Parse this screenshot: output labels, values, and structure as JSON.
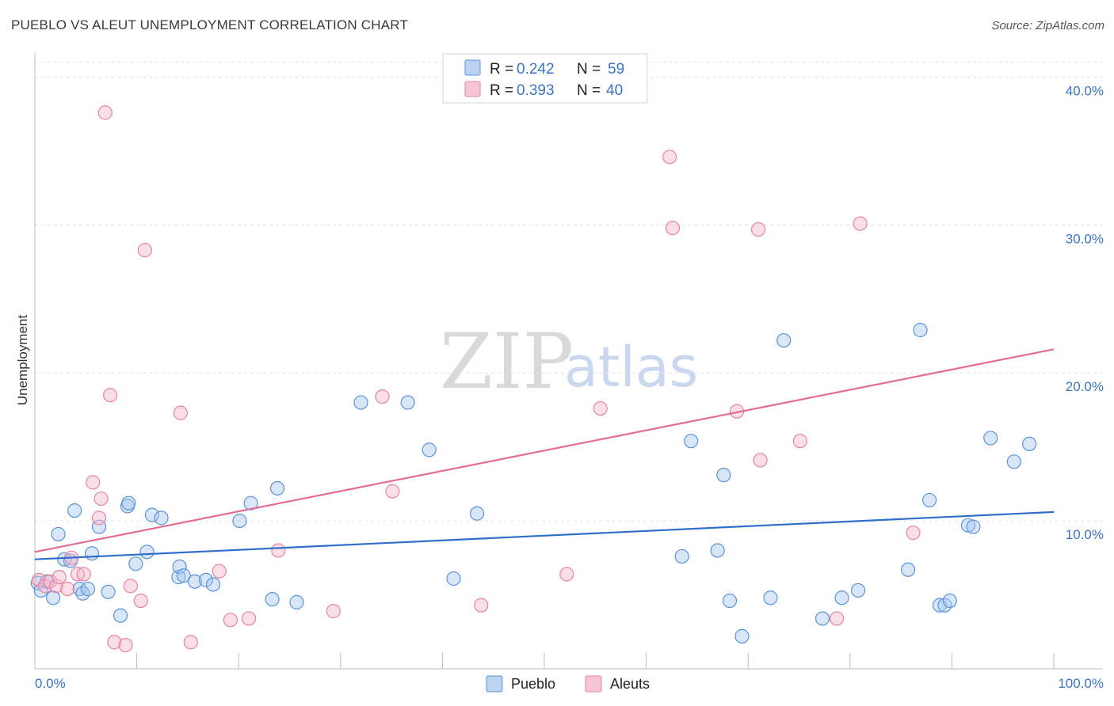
{
  "header": {
    "title": "PUEBLO VS ALEUT UNEMPLOYMENT CORRELATION CHART",
    "source": "Source: ZipAtlas.com"
  },
  "watermark": {
    "part1": "ZIP",
    "part2": "atlas"
  },
  "legend": {
    "rows": [
      {
        "r_label": "R = ",
        "r_value": "0.242",
        "n_label": "N = ",
        "n_value": "59",
        "color": "#a9c8f0"
      },
      {
        "r_label": "R = ",
        "r_value": "0.393",
        "n_label": "N = ",
        "n_value": "40",
        "color": "#f5b8cb"
      }
    ]
  },
  "chart_data": {
    "type": "scatter",
    "title": "PUEBLO VS ALEUT UNEMPLOYMENT CORRELATION CHART",
    "xlabel": "",
    "ylabel": "Unemployment",
    "xlim": [
      0,
      100
    ],
    "ylim": [
      0,
      42
    ],
    "x_tick_labels": [
      "0.0%",
      "100.0%"
    ],
    "y_ticks": [
      10,
      20,
      30,
      40
    ],
    "y_tick_labels": [
      "10.0%",
      "20.0%",
      "30.0%",
      "40.0%"
    ],
    "grid": true,
    "legend_position": "top-center",
    "series": [
      {
        "name": "Pueblo",
        "color": "#5b93d9",
        "fill": "#a9c8f0",
        "line_color": "#2f6fcc",
        "trend": {
          "x": [
            0,
            100
          ],
          "y": [
            7.4,
            10.6
          ]
        },
        "points": [
          [
            0.3,
            5.8
          ],
          [
            0.6,
            5.3
          ],
          [
            1.2,
            5.9
          ],
          [
            1.8,
            4.8
          ],
          [
            2.3,
            9.1
          ],
          [
            2.9,
            7.4
          ],
          [
            3.5,
            7.3
          ],
          [
            3.9,
            10.7
          ],
          [
            4.4,
            5.4
          ],
          [
            4.7,
            5.1
          ],
          [
            5.2,
            5.4
          ],
          [
            5.6,
            7.8
          ],
          [
            6.3,
            9.6
          ],
          [
            7.2,
            5.2
          ],
          [
            8.4,
            3.6
          ],
          [
            9.1,
            11.0
          ],
          [
            9.2,
            11.2
          ],
          [
            9.9,
            7.1
          ],
          [
            11.0,
            7.9
          ],
          [
            11.5,
            10.4
          ],
          [
            12.4,
            10.2
          ],
          [
            14.1,
            6.2
          ],
          [
            14.2,
            6.9
          ],
          [
            14.6,
            6.3
          ],
          [
            15.7,
            5.9
          ],
          [
            16.8,
            6.0
          ],
          [
            17.5,
            5.7
          ],
          [
            20.1,
            10.0
          ],
          [
            21.2,
            11.2
          ],
          [
            23.3,
            4.7
          ],
          [
            23.8,
            12.2
          ],
          [
            25.7,
            4.5
          ],
          [
            32.0,
            18.0
          ],
          [
            36.6,
            18.0
          ],
          [
            38.7,
            14.8
          ],
          [
            41.1,
            6.1
          ],
          [
            43.4,
            10.5
          ],
          [
            63.5,
            7.6
          ],
          [
            64.4,
            15.4
          ],
          [
            67.0,
            8.0
          ],
          [
            67.6,
            13.1
          ],
          [
            68.2,
            4.6
          ],
          [
            69.4,
            2.2
          ],
          [
            72.2,
            4.8
          ],
          [
            73.5,
            22.2
          ],
          [
            77.3,
            3.4
          ],
          [
            79.2,
            4.8
          ],
          [
            80.8,
            5.3
          ],
          [
            85.7,
            6.7
          ],
          [
            86.9,
            22.9
          ],
          [
            87.8,
            11.4
          ],
          [
            88.8,
            4.3
          ],
          [
            89.3,
            4.3
          ],
          [
            89.8,
            4.6
          ],
          [
            91.6,
            9.7
          ],
          [
            92.1,
            9.6
          ],
          [
            93.8,
            15.6
          ],
          [
            96.1,
            14.0
          ],
          [
            97.6,
            15.2
          ]
        ]
      },
      {
        "name": "Aleuts",
        "color": "#e8849f",
        "fill": "#f5b8cb",
        "line_color": "#e36c94",
        "trend": {
          "x": [
            0,
            100
          ],
          "y": [
            7.9,
            21.6
          ]
        },
        "points": [
          [
            0.4,
            6.0
          ],
          [
            1.0,
            5.6
          ],
          [
            1.5,
            5.9
          ],
          [
            2.1,
            5.6
          ],
          [
            2.4,
            6.2
          ],
          [
            3.2,
            5.4
          ],
          [
            3.6,
            7.5
          ],
          [
            4.2,
            6.4
          ],
          [
            4.8,
            6.4
          ],
          [
            5.7,
            12.6
          ],
          [
            6.3,
            10.2
          ],
          [
            6.5,
            11.5
          ],
          [
            6.9,
            37.6
          ],
          [
            7.4,
            18.5
          ],
          [
            7.8,
            1.8
          ],
          [
            8.9,
            1.6
          ],
          [
            9.4,
            5.6
          ],
          [
            10.4,
            4.6
          ],
          [
            10.8,
            28.3
          ],
          [
            14.3,
            17.3
          ],
          [
            15.3,
            1.8
          ],
          [
            18.1,
            6.6
          ],
          [
            19.2,
            3.3
          ],
          [
            21.0,
            3.4
          ],
          [
            23.9,
            8.0
          ],
          [
            29.3,
            3.9
          ],
          [
            34.1,
            18.4
          ],
          [
            35.1,
            12.0
          ],
          [
            43.8,
            4.3
          ],
          [
            52.2,
            6.4
          ],
          [
            55.5,
            17.6
          ],
          [
            62.3,
            34.6
          ],
          [
            62.6,
            29.8
          ],
          [
            68.9,
            17.4
          ],
          [
            71.0,
            29.7
          ],
          [
            71.2,
            14.1
          ],
          [
            75.1,
            15.4
          ],
          [
            78.7,
            3.4
          ],
          [
            81.0,
            30.1
          ],
          [
            86.2,
            9.2
          ]
        ]
      }
    ]
  }
}
